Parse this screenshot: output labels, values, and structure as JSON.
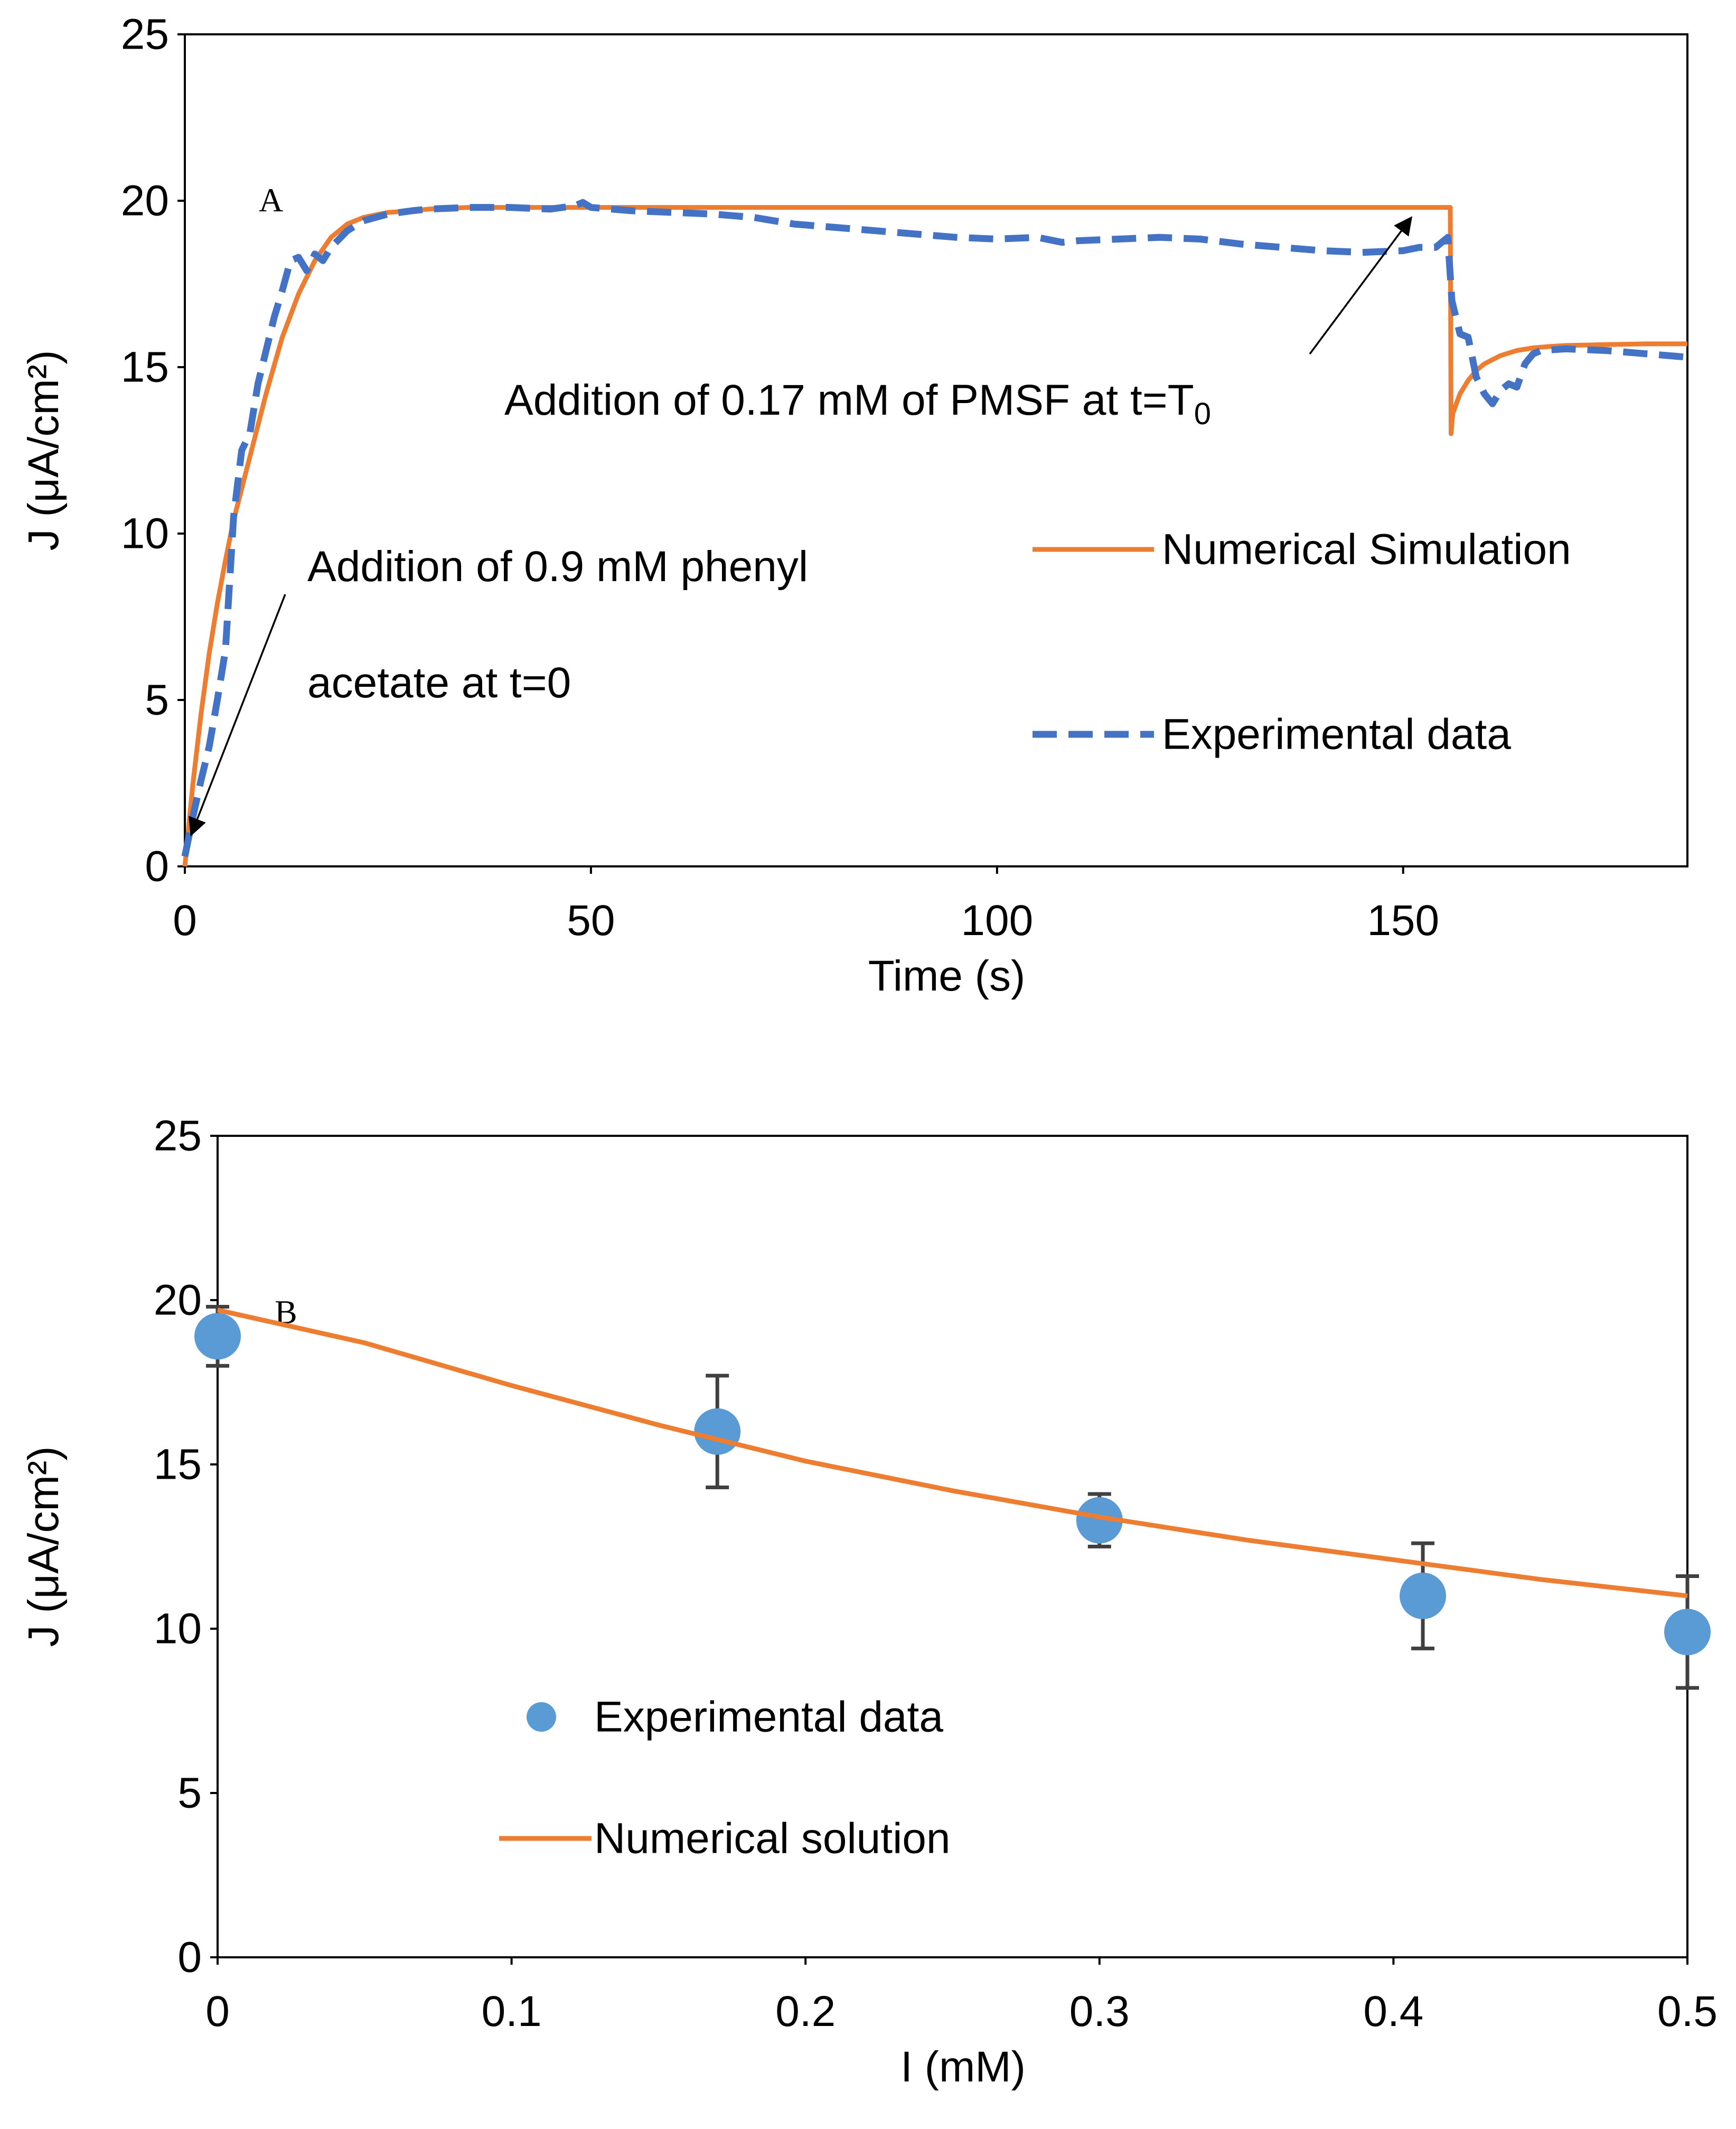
{
  "chart_data": [
    {
      "panel_label": "A",
      "type": "line",
      "xlabel": "Time (s)",
      "ylabel": "J (μA/cm²)",
      "xlim": [
        0,
        185
      ],
      "ylim": [
        0,
        25
      ],
      "xticks": [
        0,
        50,
        100,
        150
      ],
      "yticks": [
        0,
        5,
        10,
        15,
        20,
        25
      ],
      "grid": false,
      "legend_position": "right-middle",
      "series": [
        {
          "name": "Numerical Simulation",
          "style": "solid",
          "color": "#ED7D31",
          "x": [
            0,
            1,
            2,
            3,
            4,
            5,
            6,
            8,
            10,
            12,
            14,
            16,
            18,
            20,
            22,
            25,
            28,
            30,
            35,
            40,
            50,
            60,
            80,
            100,
            120,
            140,
            155.8,
            155.9,
            156.1,
            157,
            158,
            159,
            160,
            162,
            164,
            166,
            168,
            170,
            175,
            180,
            185
          ],
          "y": [
            0,
            2.5,
            4.6,
            6.4,
            7.9,
            9.2,
            10.4,
            12.3,
            14.2,
            15.9,
            17.2,
            18.2,
            18.9,
            19.3,
            19.5,
            19.65,
            19.7,
            19.75,
            19.8,
            19.8,
            19.8,
            19.8,
            19.8,
            19.8,
            19.8,
            19.8,
            19.8,
            13.0,
            13.6,
            14.2,
            14.6,
            14.9,
            15.1,
            15.35,
            15.5,
            15.58,
            15.62,
            15.65,
            15.68,
            15.7,
            15.7
          ]
        },
        {
          "name": "Experimental data",
          "style": "dashed",
          "color": "#4472C4",
          "x": [
            0,
            1,
            2,
            3,
            4,
            5,
            6,
            7,
            8,
            9,
            10,
            11,
            12,
            13,
            14,
            15,
            16,
            17,
            18,
            20,
            22,
            25,
            28,
            30,
            35,
            40,
            45,
            48,
            49,
            50,
            55,
            60,
            65,
            70,
            75,
            80,
            85,
            90,
            95,
            100,
            105,
            108,
            110,
            115,
            120,
            125,
            130,
            135,
            140,
            145,
            150,
            152,
            154,
            155.5,
            156,
            157,
            158,
            159,
            160,
            161,
            162,
            163,
            164,
            165,
            166,
            167,
            170,
            175,
            180,
            185
          ],
          "y": [
            0.3,
            1.5,
            2.6,
            3.6,
            5.0,
            6.5,
            10.5,
            12.5,
            13.0,
            14.5,
            15.5,
            16.5,
            17.3,
            18.2,
            18.3,
            17.9,
            18.4,
            18.2,
            18.6,
            19.1,
            19.4,
            19.6,
            19.7,
            19.75,
            19.8,
            19.8,
            19.75,
            19.85,
            19.95,
            19.8,
            19.7,
            19.65,
            19.6,
            19.5,
            19.3,
            19.2,
            19.1,
            19.0,
            18.9,
            18.85,
            18.9,
            18.75,
            18.8,
            18.85,
            18.9,
            18.85,
            18.7,
            18.6,
            18.5,
            18.45,
            18.5,
            18.6,
            18.6,
            18.9,
            17.0,
            16.0,
            15.9,
            14.7,
            14.2,
            13.9,
            14.3,
            14.5,
            14.4,
            15.1,
            15.4,
            15.5,
            15.55,
            15.5,
            15.4,
            15.3
          ]
        }
      ],
      "annotations": [
        {
          "text": "Addition of 0.9 mM phenyl",
          "target": [
            0.5,
            0.8
          ]
        },
        {
          "text": "acetate at t=0"
        },
        {
          "text_main": "Addition of  0.17 mM of PMSF at t=T",
          "text_sub": "0",
          "target": [
            151.5,
            19.7
          ]
        }
      ]
    },
    {
      "panel_label": "B",
      "type": "scatter",
      "xlabel": "I (mM)",
      "ylabel": "J (μA/cm²)",
      "xlim": [
        0,
        0.5
      ],
      "ylim": [
        0,
        25
      ],
      "xticks": [
        0,
        0.1,
        0.2,
        0.3,
        0.4,
        0.5
      ],
      "xtick_labels": [
        "0",
        "0.1",
        "0.2",
        "0.3",
        "0.4",
        "0.5"
      ],
      "yticks": [
        0,
        5,
        10,
        15,
        20,
        25
      ],
      "grid": false,
      "legend_position": "lower-left",
      "series": [
        {
          "name": "Experimental data",
          "style": "marker",
          "color": "#5B9BD5",
          "x": [
            0,
            0.17,
            0.3,
            0.41,
            0.5
          ],
          "y": [
            18.9,
            16.0,
            13.3,
            11.0,
            9.9
          ],
          "err": [
            0.9,
            1.7,
            0.8,
            1.6,
            1.7
          ]
        },
        {
          "name": "Numerical solution",
          "style": "solid",
          "color": "#ED7D31",
          "x": [
            0,
            0.05,
            0.1,
            0.15,
            0.2,
            0.25,
            0.3,
            0.35,
            0.4,
            0.45,
            0.5
          ],
          "y": [
            19.7,
            18.7,
            17.4,
            16.2,
            15.1,
            14.2,
            13.4,
            12.7,
            12.1,
            11.5,
            11.0
          ]
        }
      ]
    }
  ]
}
